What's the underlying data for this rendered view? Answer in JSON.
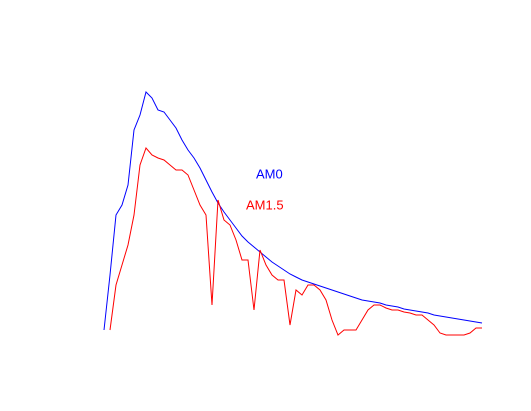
{
  "chart_data": {
    "type": "line",
    "ylim": [
      0,
      100
    ],
    "series": [
      {
        "name": "AM0",
        "color": "#0000ff",
        "values": [
          2,
          24,
          48,
          52,
          60,
          82,
          88,
          97.2,
          94.8,
          90,
          89.2,
          86,
          82.8,
          78,
          74,
          70.8,
          66.8,
          62,
          57.2,
          52.8,
          49.2,
          46,
          42.8,
          39.6,
          37.2,
          35.2,
          33.2,
          31.2,
          29.2,
          27.6,
          26,
          24.4,
          23.2,
          22,
          21.2,
          20.4,
          19.6,
          18.8,
          18,
          17.2,
          16.4,
          15.6,
          14.8,
          14,
          13.6,
          13.2,
          12.8,
          12,
          11.6,
          11.2,
          10.4,
          10,
          9.6,
          9.2,
          8.8,
          8,
          7.6,
          7.2,
          6.8,
          6.4,
          6,
          5.6,
          5.2,
          4.8
        ]
      },
      {
        "name": "AM1.5",
        "color": "#ff0000",
        "values": [
          null,
          2,
          20,
          28,
          36,
          48,
          68,
          74.8,
          72,
          70.8,
          70,
          68,
          66,
          66,
          64,
          58,
          52,
          48,
          12,
          54,
          46,
          44,
          38,
          30,
          30,
          10,
          34,
          28,
          24,
          22,
          22,
          4,
          18,
          16,
          20,
          20,
          18,
          14,
          6,
          0,
          2,
          2,
          2,
          6,
          10,
          12,
          12,
          10.8,
          10,
          10,
          9.2,
          8.8,
          8,
          8,
          6,
          4,
          0.8,
          0,
          0,
          0,
          0,
          0.8,
          2.8,
          2.8
        ]
      }
    ]
  }
}
